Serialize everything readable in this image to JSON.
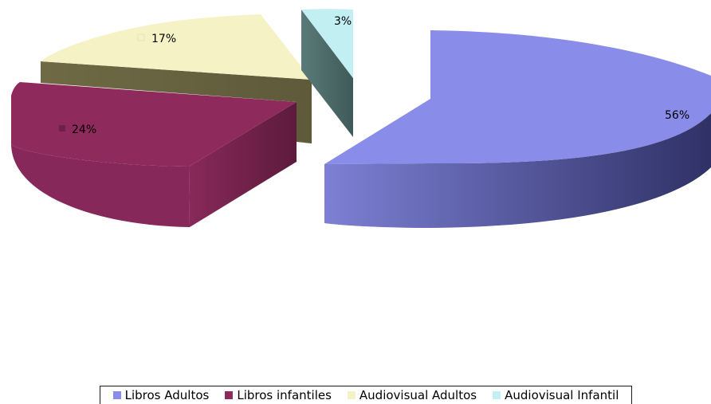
{
  "chart_data": {
    "type": "pie",
    "title": "",
    "categories": [
      "Libros Adultos",
      "Libros infantiles",
      "Audiovisual Adultos",
      "Audiovisual Infantil"
    ],
    "values": [
      56,
      24,
      17,
      3
    ],
    "value_labels": [
      "56%",
      "24%",
      "17%",
      "3%"
    ],
    "colors": [
      "#8a8cea",
      "#8f2b5c",
      "#f5f3c6",
      "#c2eff2"
    ],
    "style": "3d-exploded",
    "legend_position": "bottom"
  }
}
